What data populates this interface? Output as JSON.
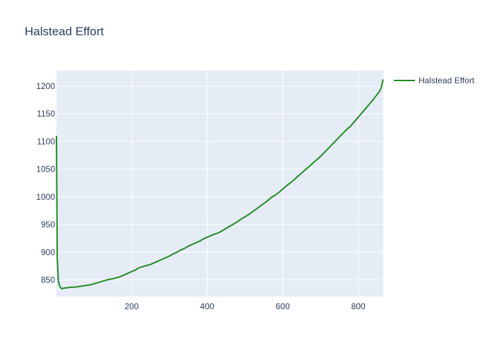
{
  "chart_data": {
    "type": "line",
    "title": "Halstead Effort",
    "xlabel": "",
    "ylabel": "",
    "xlim": [
      1,
      866
    ],
    "ylim": [
      820,
      1228
    ],
    "x_ticks": [
      200,
      400,
      600,
      800
    ],
    "y_ticks": [
      850,
      900,
      950,
      1000,
      1050,
      1100,
      1150,
      1200
    ],
    "grid": true,
    "legend_position": "top-right",
    "series": [
      {
        "name": "Halstead Effort",
        "color": "#228b22",
        "x": [
          1,
          3,
          6,
          10,
          15,
          20,
          30,
          40,
          50,
          60,
          70,
          80,
          90,
          100,
          110,
          120,
          130,
          140,
          150,
          160,
          170,
          180,
          190,
          200,
          210,
          220,
          230,
          240,
          250,
          260,
          270,
          280,
          290,
          300,
          310,
          320,
          330,
          340,
          350,
          360,
          370,
          380,
          390,
          400,
          410,
          420,
          430,
          440,
          450,
          460,
          470,
          480,
          490,
          500,
          510,
          520,
          530,
          540,
          550,
          560,
          570,
          580,
          590,
          600,
          610,
          620,
          630,
          640,
          650,
          660,
          670,
          680,
          690,
          700,
          710,
          720,
          730,
          740,
          750,
          760,
          770,
          780,
          790,
          800,
          810,
          820,
          830,
          840,
          850,
          856,
          860,
          866
        ],
        "y": [
          1110,
          890,
          848,
          838,
          834,
          835,
          836,
          837,
          837,
          838,
          839,
          840,
          841,
          843,
          845,
          847,
          849,
          851,
          852,
          854,
          856,
          859,
          862,
          865,
          868,
          872,
          874,
          876,
          878,
          881,
          884,
          887,
          890,
          893,
          897,
          900,
          904,
          907,
          911,
          914,
          917,
          920,
          924,
          927,
          930,
          933,
          935,
          939,
          943,
          947,
          951,
          955,
          960,
          964,
          968,
          973,
          978,
          983,
          988,
          993,
          999,
          1003,
          1008,
          1014,
          1020,
          1025,
          1031,
          1037,
          1043,
          1049,
          1055,
          1061,
          1067,
          1073,
          1080,
          1087,
          1094,
          1101,
          1108,
          1115,
          1122,
          1128,
          1136,
          1144,
          1152,
          1160,
          1168,
          1176,
          1185,
          1190,
          1196,
          1212
        ]
      }
    ]
  }
}
